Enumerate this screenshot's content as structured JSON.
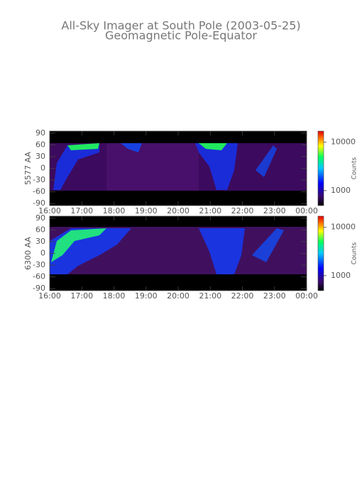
{
  "title": "All-Sky Imager at South Pole (2003-05-25)",
  "subtitle": "Geomagnetic Pole-Equator",
  "chart_data": [
    {
      "type": "heatmap",
      "ylabel": "5577 AA",
      "xlim": [
        16,
        24
      ],
      "xticks": [
        {
          "value": 16,
          "label": "16:00"
        },
        {
          "value": 17,
          "label": "17:00"
        },
        {
          "value": 18,
          "label": "18:00"
        },
        {
          "value": 19,
          "label": "19:00"
        },
        {
          "value": 20,
          "label": "20:00"
        },
        {
          "value": 21,
          "label": "21:00"
        },
        {
          "value": 22,
          "label": "22:00"
        },
        {
          "value": 23,
          "label": "23:00"
        },
        {
          "value": 24,
          "label": "00:00"
        }
      ],
      "ylim": [
        -95,
        95
      ],
      "yticks": [
        -90,
        -60,
        -30,
        0,
        30,
        60,
        90
      ],
      "colorbar": {
        "label": "Counts",
        "log": true,
        "lim": [
          490,
          17000
        ],
        "ticks": [
          1000,
          10000
        ]
      }
    },
    {
      "type": "heatmap",
      "ylabel": "6300 AA",
      "xlim": [
        16,
        24
      ],
      "xticks": [
        {
          "value": 16,
          "label": "16:00"
        },
        {
          "value": 17,
          "label": "17:00"
        },
        {
          "value": 18,
          "label": "18:00"
        },
        {
          "value": 19,
          "label": "19:00"
        },
        {
          "value": 20,
          "label": "20:00"
        },
        {
          "value": 21,
          "label": "21:00"
        },
        {
          "value": 22,
          "label": "22:00"
        },
        {
          "value": 23,
          "label": "23:00"
        },
        {
          "value": 24,
          "label": "00:00"
        }
      ],
      "ylim": [
        -95,
        95
      ],
      "yticks": [
        -90,
        -60,
        -30,
        0,
        30,
        60,
        90
      ],
      "colorbar": {
        "label": "Counts",
        "log": true,
        "lim": [
          490,
          17000
        ],
        "ticks": [
          1000,
          10000
        ]
      }
    }
  ]
}
